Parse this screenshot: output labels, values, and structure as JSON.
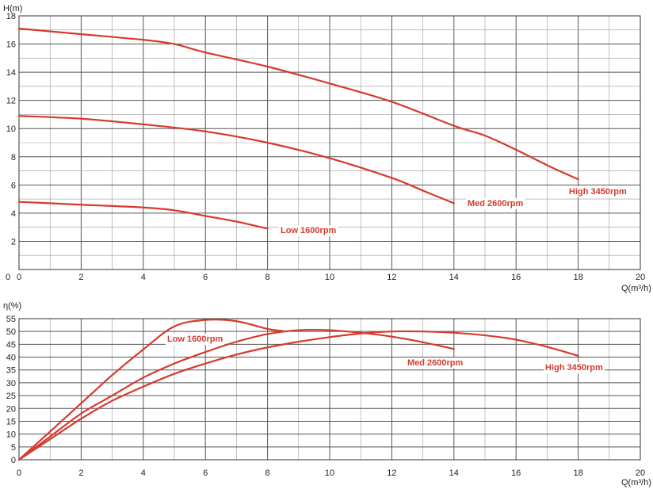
{
  "chart_data": [
    {
      "type": "line",
      "ylabel": "H(m)",
      "xlabel": "Q(m³/h)",
      "xlim": [
        0,
        20
      ],
      "ylim": [
        0,
        18
      ],
      "x_ticks": [
        0,
        2,
        4,
        6,
        8,
        10,
        12,
        14,
        16,
        18,
        20
      ],
      "y_ticks": [
        2,
        4,
        6,
        8,
        10,
        12,
        14,
        16,
        18
      ],
      "y_zero_label": "0",
      "grid": true,
      "series": [
        {
          "name": "High 3450rpm",
          "color": "#d63a2e",
          "points": [
            [
              0,
              17.1
            ],
            [
              2,
              16.7
            ],
            [
              4,
              16.3
            ],
            [
              5,
              16.0
            ],
            [
              6,
              15.4
            ],
            [
              8,
              14.4
            ],
            [
              10,
              13.2
            ],
            [
              12,
              11.9
            ],
            [
              14,
              10.2
            ],
            [
              15,
              9.5
            ],
            [
              16,
              8.5
            ],
            [
              17,
              7.4
            ],
            [
              18,
              6.4
            ]
          ]
        },
        {
          "name": "Med 2600rpm",
          "color": "#d63a2e",
          "points": [
            [
              0,
              10.9
            ],
            [
              2,
              10.7
            ],
            [
              4,
              10.3
            ],
            [
              6,
              9.8
            ],
            [
              8,
              9.0
            ],
            [
              10,
              7.9
            ],
            [
              12,
              6.5
            ],
            [
              13,
              5.6
            ],
            [
              14,
              4.7
            ]
          ]
        },
        {
          "name": "Low 1600rpm",
          "color": "#d63a2e",
          "points": [
            [
              0,
              4.8
            ],
            [
              2,
              4.6
            ],
            [
              4,
              4.4
            ],
            [
              5,
              4.2
            ],
            [
              6,
              3.8
            ],
            [
              7,
              3.4
            ],
            [
              8,
              2.9
            ]
          ]
        }
      ]
    },
    {
      "type": "line",
      "ylabel": "η(%)",
      "xlabel": "Q(m³/h)",
      "xlim": [
        0,
        20
      ],
      "ylim": [
        0,
        55
      ],
      "x_ticks": [
        0,
        2,
        4,
        6,
        8,
        10,
        12,
        14,
        16,
        18,
        20
      ],
      "y_ticks": [
        0,
        5,
        10,
        15,
        20,
        25,
        30,
        35,
        40,
        45,
        50,
        55
      ],
      "grid": true,
      "series": [
        {
          "name": "Low 1600rpm",
          "color": "#d63a2e",
          "points": [
            [
              0,
              0
            ],
            [
              1,
              11
            ],
            [
              2,
              22
            ],
            [
              3,
              33
            ],
            [
              4,
              43
            ],
            [
              5,
              52
            ],
            [
              6,
              54.5
            ],
            [
              7,
              54
            ],
            [
              8,
              51
            ],
            [
              8.5,
              50.2
            ]
          ]
        },
        {
          "name": "Med 2600rpm",
          "color": "#d63a2e",
          "points": [
            [
              0,
              0
            ],
            [
              1,
              9
            ],
            [
              2,
              18
            ],
            [
              3,
              25
            ],
            [
              4,
              32
            ],
            [
              5,
              37.5
            ],
            [
              6,
              42
            ],
            [
              7,
              46
            ],
            [
              8,
              49
            ],
            [
              9,
              50.5
            ],
            [
              10,
              50.5
            ],
            [
              11,
              49.5
            ],
            [
              12,
              48
            ],
            [
              13,
              45.8
            ],
            [
              14,
              43.2
            ]
          ]
        },
        {
          "name": "High 3450rpm",
          "color": "#d63a2e",
          "points": [
            [
              0,
              0
            ],
            [
              1,
              8
            ],
            [
              2,
              16
            ],
            [
              3,
              23
            ],
            [
              4,
              28.5
            ],
            [
              5,
              33.5
            ],
            [
              6,
              37.5
            ],
            [
              7,
              41
            ],
            [
              8,
              43.8
            ],
            [
              9,
              46
            ],
            [
              10,
              47.8
            ],
            [
              11,
              49.2
            ],
            [
              12,
              50
            ],
            [
              13,
              50
            ],
            [
              14,
              49.5
            ],
            [
              15,
              48.5
            ],
            [
              16,
              46.8
            ],
            [
              17,
              44
            ],
            [
              18,
              40.5
            ]
          ]
        }
      ]
    }
  ]
}
